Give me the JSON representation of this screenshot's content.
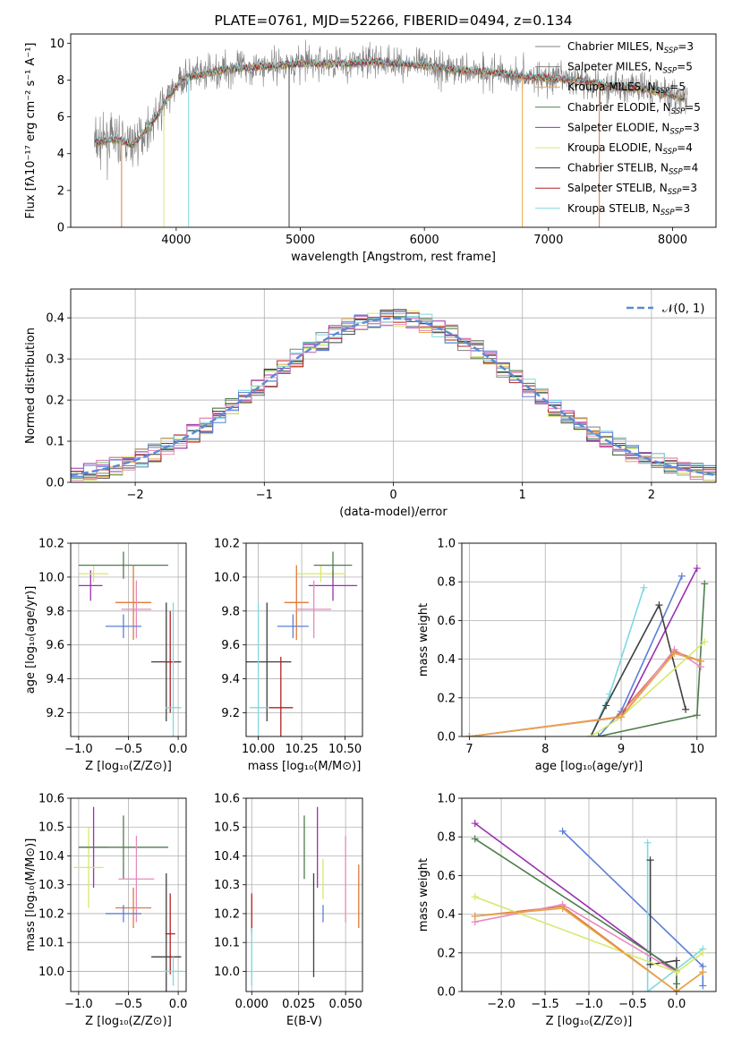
{
  "chart_data": [
    {
      "id": "spectrum",
      "type": "line",
      "title": "PLATE=0761, MJD=52266, FIBERID=0494, z=0.134",
      "xlabel": "wavelength [Angstrom, rest frame]",
      "ylabel": "Flux [fλ10⁻¹⁷ erg cm⁻² s⁻¹ A⁻¹]",
      "xlim": [
        3150,
        8350
      ],
      "ylim": [
        0,
        10.5
      ],
      "xticks": [
        4000,
        5000,
        6000,
        7000,
        8000
      ],
      "yticks": [
        0,
        2,
        4,
        6,
        8,
        10
      ],
      "grid": false,
      "legend_position": "right",
      "legend": [
        {
          "label": "Chabrier MILES, N",
          "sub": "SSP",
          "suffix": "=3",
          "color": "#808080"
        },
        {
          "label": "Salpeter MILES, N",
          "sub": "SSP",
          "suffix": "=5",
          "color": "#7f7f7f"
        },
        {
          "label": "Kroupa MILES, N",
          "sub": "SSP",
          "suffix": "=5",
          "color": "#e6a64a"
        },
        {
          "label": "Chabrier ELODIE, N",
          "sub": "SSP",
          "suffix": "=5",
          "color": "#4e7d4e"
        },
        {
          "label": "Salpeter ELODIE, N",
          "sub": "SSP",
          "suffix": "=3",
          "color": "#9b30b0"
        },
        {
          "label": "Kroupa ELODIE, N",
          "sub": "SSP",
          "suffix": "=4",
          "color": "#d7e86a"
        },
        {
          "label": "Chabrier STELIB, N",
          "sub": "SSP",
          "suffix": "=4",
          "color": "#3f3f3f"
        },
        {
          "label": "Salpeter STELIB, N",
          "sub": "SSP",
          "suffix": "=3",
          "color": "#b22222"
        },
        {
          "label": "Kroupa STELIB, N",
          "sub": "SSP",
          "suffix": "=3",
          "color": "#7fd8e0"
        }
      ],
      "spectrum_shape": {
        "x": [
          3350,
          3500,
          3650,
          3800,
          3950,
          4050,
          4200,
          4400,
          4600,
          4800,
          5000,
          5200,
          5400,
          5600,
          5800,
          6000,
          6200,
          6400,
          6600,
          6800,
          7000,
          7200,
          7400,
          7600,
          7800,
          8000,
          8100
        ],
        "y": [
          4.6,
          4.8,
          4.5,
          5.6,
          7.2,
          8.1,
          8.3,
          8.6,
          8.7,
          8.8,
          8.9,
          8.9,
          8.9,
          9.0,
          8.9,
          8.8,
          8.6,
          8.5,
          8.4,
          8.2,
          8.1,
          8.0,
          7.8,
          7.6,
          7.5,
          7.2,
          7.0
        ]
      },
      "model_dropouts": [
        {
          "x": 3560,
          "color": "#e07a3a"
        },
        {
          "x": 3900,
          "color": "#d7e86a"
        },
        {
          "x": 4100,
          "color": "#7fd8e0"
        },
        {
          "x": 4910,
          "color": "#3f3f3f"
        },
        {
          "x": 6790,
          "color": "#e6a64a"
        },
        {
          "x": 7410,
          "color": "#e07a3a"
        }
      ]
    },
    {
      "id": "residuals",
      "type": "histogram",
      "xlabel": "(data-model)/error",
      "ylabel": "Normed distribution",
      "xlim": [
        -2.5,
        2.5
      ],
      "ylim": [
        0,
        0.47
      ],
      "xticks": [
        -2,
        -1,
        0,
        1,
        2
      ],
      "yticks": [
        0.0,
        0.1,
        0.2,
        0.3,
        0.4
      ],
      "grid": true,
      "legend_position": "top-right",
      "legend_label": "𝒩(0, 1)",
      "gaussian": {
        "mean": 0,
        "sigma": 1,
        "color": "#5b8bd6"
      },
      "bin_width": 0.1,
      "series_colors": [
        "#808080",
        "#7f7f7f",
        "#e6a64a",
        "#4e7d4e",
        "#9b30b0",
        "#d7e86a",
        "#3f3f3f",
        "#b22222",
        "#7fd8e0",
        "#5b7fd8",
        "#e88ac0"
      ]
    },
    {
      "id": "age-vs-Z",
      "type": "scatter",
      "xlabel": "Z [log₁₀(Z/Z⊙)]",
      "ylabel": "age  [log₁₀(age/yr)]",
      "xlim": [
        -1.08,
        0.08
      ],
      "ylim": [
        9.06,
        10.2
      ],
      "xticks": [
        -1.0,
        -0.5,
        0.0
      ],
      "yticks": [
        9.2,
        9.4,
        9.6,
        9.8,
        10.0,
        10.2
      ],
      "grid": true,
      "points": [
        {
          "x": -0.88,
          "xerr": 0.12,
          "y": 9.95,
          "yerr": 0.09,
          "color": "#9b30b0"
        },
        {
          "x": -0.85,
          "xerr": 0.15,
          "y": 10.02,
          "yerr": 0.05,
          "color": "#d7e86a"
        },
        {
          "x": -0.55,
          "xerr": 0.45,
          "y": 10.07,
          "yerr": 0.08,
          "color": "#4e7d4e"
        },
        {
          "x": -0.45,
          "xerr": 0.18,
          "y": 9.85,
          "yerr": 0.22,
          "color": "#e07a3a"
        },
        {
          "x": -0.42,
          "xerr": 0.15,
          "y": 9.81,
          "yerr": 0.17,
          "color": "#e88ac0"
        },
        {
          "x": -0.55,
          "xerr": 0.18,
          "y": 9.71,
          "yerr": 0.07,
          "color": "#5b7fd8"
        },
        {
          "x": -0.12,
          "xerr": 0.15,
          "y": 9.5,
          "yerr": 0.35,
          "color": "#3f3f3f"
        },
        {
          "x": -0.08,
          "xerr": 0.05,
          "y": 9.5,
          "yerr": 0.3,
          "color": "#b22222"
        },
        {
          "x": -0.05,
          "xerr": 0.08,
          "y": 9.23,
          "yerr": 0.62,
          "color": "#7fd8e0"
        }
      ]
    },
    {
      "id": "age-vs-mass",
      "type": "scatter",
      "xlabel": "mass [log₁₀(M/M⊙)]",
      "ylabel": "",
      "xlim": [
        9.93,
        10.6
      ],
      "ylim": [
        9.06,
        10.2
      ],
      "xticks": [
        10.0,
        10.25,
        10.5
      ],
      "yticks": [
        9.2,
        9.4,
        9.6,
        9.8,
        10.0,
        10.2
      ],
      "grid": true,
      "points": [
        {
          "x": 10.43,
          "xerr": 0.14,
          "y": 9.95,
          "yerr": 0.09,
          "color": "#9b30b0"
        },
        {
          "x": 10.36,
          "xerr": 0.14,
          "y": 10.02,
          "yerr": 0.05,
          "color": "#d7e86a"
        },
        {
          "x": 10.43,
          "xerr": 0.11,
          "y": 10.07,
          "yerr": 0.08,
          "color": "#4e7d4e"
        },
        {
          "x": 10.22,
          "xerr": 0.07,
          "y": 9.85,
          "yerr": 0.22,
          "color": "#e07a3a"
        },
        {
          "x": 10.32,
          "xerr": 0.1,
          "y": 9.81,
          "yerr": 0.17,
          "color": "#e88ac0"
        },
        {
          "x": 10.2,
          "xerr": 0.09,
          "y": 9.71,
          "yerr": 0.07,
          "color": "#5b7fd8"
        },
        {
          "x": 10.05,
          "xerr": 0.14,
          "y": 9.5,
          "yerr": 0.35,
          "color": "#3f3f3f"
        },
        {
          "x": 10.13,
          "xerr": 0.07,
          "y": 9.23,
          "yerr": 0.3,
          "color": "#b22222"
        },
        {
          "x": 10.0,
          "xerr": 0.05,
          "y": 9.23,
          "yerr": 0.62,
          "color": "#7fd8e0"
        }
      ]
    },
    {
      "id": "weight-vs-age",
      "type": "line",
      "xlabel": "age  [log₁₀(age/yr)]",
      "ylabel": "mass weight",
      "xlim": [
        6.9,
        10.25
      ],
      "ylim": [
        0,
        1.0
      ],
      "xticks": [
        7,
        8,
        9,
        10
      ],
      "yticks": [
        0.0,
        0.2,
        0.4,
        0.6,
        0.8,
        1.0
      ],
      "grid": true,
      "series": [
        {
          "color": "#9b30b0",
          "x": [
            7.0,
            9.0,
            10.0
          ],
          "y": [
            0.0,
            0.1,
            0.87
          ]
        },
        {
          "color": "#5b7fd8",
          "x": [
            8.7,
            9.0,
            9.8
          ],
          "y": [
            0.0,
            0.13,
            0.83
          ]
        },
        {
          "color": "#7fd8e0",
          "x": [
            8.6,
            8.85,
            9.3
          ],
          "y": [
            0.0,
            0.22,
            0.77
          ]
        },
        {
          "color": "#3f3f3f",
          "x": [
            8.6,
            8.8,
            9.5,
            9.85
          ],
          "y": [
            0.0,
            0.16,
            0.68,
            0.14
          ]
        },
        {
          "color": "#4e7d4e",
          "x": [
            8.7,
            10.0,
            10.1
          ],
          "y": [
            0.0,
            0.11,
            0.79
          ]
        },
        {
          "color": "#e07a3a",
          "x": [
            7.0,
            8.95,
            9.7,
            10.05
          ],
          "y": [
            0.0,
            0.1,
            0.44,
            0.39
          ]
        },
        {
          "color": "#e88ac0",
          "x": [
            7.0,
            9.0,
            9.7,
            10.05
          ],
          "y": [
            0.0,
            0.1,
            0.45,
            0.36
          ]
        },
        {
          "color": "#d7e86a",
          "x": [
            8.6,
            9.0,
            10.1
          ],
          "y": [
            0.0,
            0.1,
            0.49
          ]
        },
        {
          "color": "#e6a64a",
          "x": [
            7.0,
            9.0,
            9.7,
            10.05
          ],
          "y": [
            0.0,
            0.1,
            0.43,
            0.39
          ]
        }
      ]
    },
    {
      "id": "mass-vs-Z",
      "type": "scatter",
      "xlabel": "Z [log₁₀(Z/Z⊙)]",
      "ylabel": "mass [log₁₀(M/M⊙)]",
      "xlim": [
        -1.08,
        0.08
      ],
      "ylim": [
        9.93,
        10.6
      ],
      "xticks": [
        -1.0,
        -0.5,
        0.0
      ],
      "yticks": [
        10.0,
        10.1,
        10.2,
        10.3,
        10.4,
        10.5,
        10.6
      ],
      "grid": true,
      "points": [
        {
          "x": -0.85,
          "xerr": 0.15,
          "y": 10.43,
          "yerr": 0.14,
          "color": "#9b30b0"
        },
        {
          "x": -0.9,
          "xerr": 0.15,
          "y": 10.36,
          "yerr": 0.14,
          "color": "#d7e86a"
        },
        {
          "x": -0.55,
          "xerr": 0.45,
          "y": 10.43,
          "yerr": 0.11,
          "color": "#4e7d4e"
        },
        {
          "x": -0.45,
          "xerr": 0.18,
          "y": 10.22,
          "yerr": 0.07,
          "color": "#e07a3a"
        },
        {
          "x": -0.42,
          "xerr": 0.18,
          "y": 10.32,
          "yerr": 0.15,
          "color": "#e88ac0"
        },
        {
          "x": -0.55,
          "xerr": 0.18,
          "y": 10.2,
          "yerr": 0.03,
          "color": "#5b7fd8"
        },
        {
          "x": -0.12,
          "xerr": 0.15,
          "y": 10.05,
          "yerr": 0.29,
          "color": "#3f3f3f"
        },
        {
          "x": -0.08,
          "xerr": 0.05,
          "y": 10.13,
          "yerr": 0.14,
          "color": "#b22222"
        },
        {
          "x": -0.05,
          "xerr": 0.1,
          "y": 10.0,
          "yerr": 0.05,
          "color": "#7fd8e0"
        }
      ]
    },
    {
      "id": "mass-vs-EBV",
      "type": "scatter",
      "xlabel": "E(B-V)",
      "ylabel": "",
      "xlim": [
        -0.003,
        0.059
      ],
      "ylim": [
        9.93,
        10.6
      ],
      "xticks": [
        0.0,
        0.025,
        0.05
      ],
      "yticks": [
        10.0,
        10.1,
        10.2,
        10.3,
        10.4,
        10.5,
        10.6
      ],
      "grid": true,
      "points": [
        {
          "x": 0.028,
          "y": 10.43,
          "yerr": 0.11,
          "color": "#4e7d4e"
        },
        {
          "x": 0.035,
          "y": 10.43,
          "yerr": 0.14,
          "color": "#9b30b0"
        },
        {
          "x": 0.038,
          "y": 10.32,
          "yerr": 0.07,
          "color": "#d7e86a"
        },
        {
          "x": 0.038,
          "y": 10.2,
          "yerr": 0.03,
          "color": "#5b7fd8"
        },
        {
          "x": 0.05,
          "y": 10.32,
          "yerr": 0.15,
          "color": "#e88ac0"
        },
        {
          "x": 0.057,
          "y": 10.26,
          "yerr": 0.11,
          "color": "#e07a3a"
        },
        {
          "x": 0.033,
          "y": 10.16,
          "yerr": 0.18,
          "color": "#3f3f3f"
        },
        {
          "x": 0.0,
          "y": 10.2,
          "yerr": 0.07,
          "color": "#b22222"
        },
        {
          "x": 0.0,
          "y": 10.05,
          "yerr": 0.1,
          "color": "#7fd8e0"
        }
      ]
    },
    {
      "id": "weight-vs-Z",
      "type": "line",
      "xlabel": "Z [log₁₀(Z/Z⊙)]",
      "ylabel": "mass weight",
      "xlim": [
        -2.45,
        0.45
      ],
      "ylim": [
        0,
        1.0
      ],
      "xticks": [
        -2.0,
        -1.5,
        -1.0,
        -0.5,
        0.0
      ],
      "yticks": [
        0.0,
        0.2,
        0.4,
        0.6,
        0.8,
        1.0
      ],
      "grid": true,
      "series": [
        {
          "color": "#9b30b0",
          "x": [
            -2.3,
            0.0
          ],
          "y": [
            0.87,
            0.1
          ]
        },
        {
          "color": "#5b7fd8",
          "x": [
            -1.3,
            0.3,
            0.3
          ],
          "y": [
            0.83,
            0.13,
            0.03
          ]
        },
        {
          "color": "#7fd8e0",
          "x": [
            -0.33,
            -0.33,
            0.3
          ],
          "y": [
            0.77,
            0.0,
            0.22
          ]
        },
        {
          "color": "#3f3f3f",
          "x": [
            -0.3,
            -0.3,
            0.0,
            0.0
          ],
          "y": [
            0.68,
            0.14,
            0.16,
            0.0
          ]
        },
        {
          "color": "#4e7d4e",
          "x": [
            -2.3,
            0.0,
            0.0
          ],
          "y": [
            0.79,
            0.11,
            0.04
          ]
        },
        {
          "color": "#e07a3a",
          "x": [
            -2.3,
            -1.3,
            0.0,
            0.3
          ],
          "y": [
            0.39,
            0.44,
            0.0,
            0.1
          ]
        },
        {
          "color": "#e88ac0",
          "x": [
            -2.3,
            -1.3,
            0.0
          ],
          "y": [
            0.36,
            0.45,
            0.1
          ]
        },
        {
          "color": "#d7e86a",
          "x": [
            -2.3,
            0.0,
            0.3
          ],
          "y": [
            0.49,
            0.1,
            0.2
          ]
        },
        {
          "color": "#e6a64a",
          "x": [
            -2.3,
            -1.3,
            0.0,
            0.3
          ],
          "y": [
            0.39,
            0.43,
            0.0,
            0.1
          ]
        }
      ]
    }
  ]
}
